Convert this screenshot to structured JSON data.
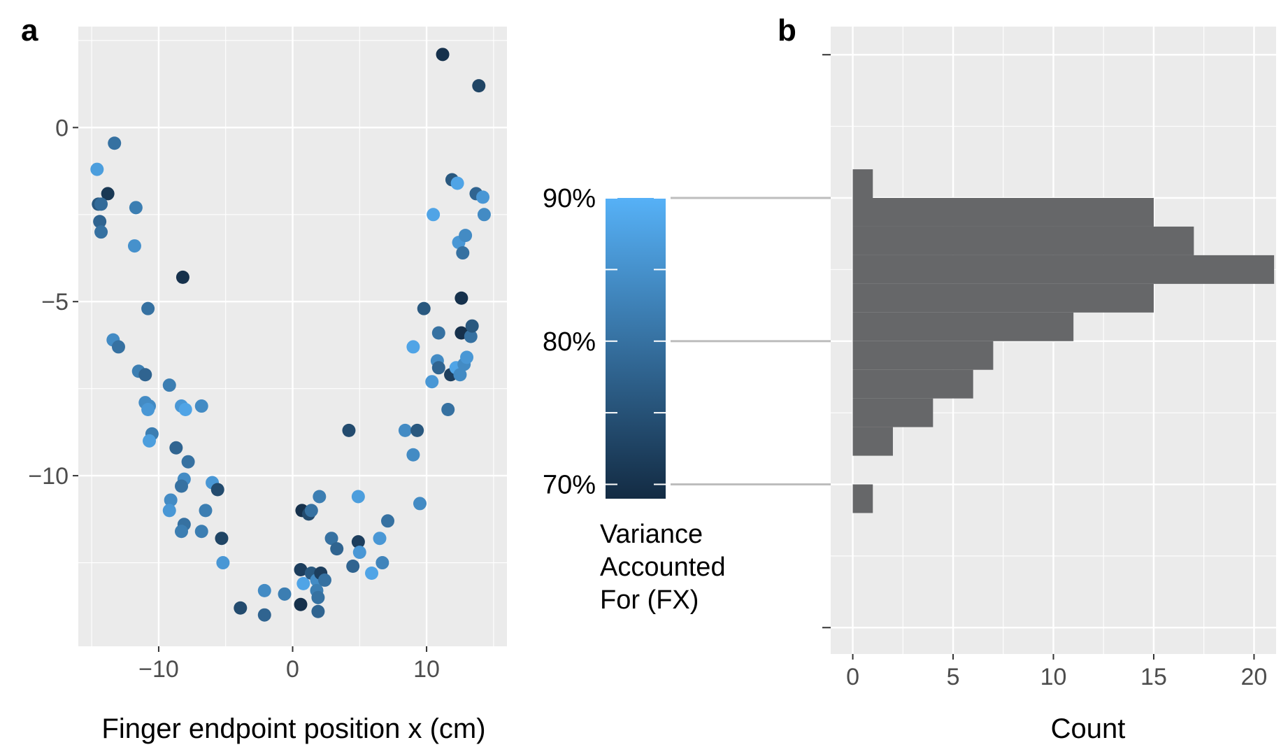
{
  "panels": {
    "a": "a",
    "b": "b"
  },
  "chart_data": [
    {
      "type": "scatter",
      "panel": "a",
      "xlabel": "Finger endpoint position x (cm)",
      "ylabel": "",
      "xlim": [
        -16,
        16
      ],
      "ylim": [
        -14.9,
        2.9
      ],
      "xticks": [
        -10,
        0,
        10
      ],
      "xtick_labels": [
        "−10",
        "0",
        "10"
      ],
      "yticks": [
        0,
        -5,
        -10
      ],
      "ytick_labels": [
        "0",
        "−5",
        "−10"
      ],
      "grid": true,
      "color_variable": "Variance Accounted For (FX)",
      "color_scale": {
        "low": "#132b43",
        "high": "#56b1f7",
        "min": 69,
        "max": 90
      },
      "points": [
        {
          "x": 11.2,
          "y": 2.1,
          "c": 70
        },
        {
          "x": 13.9,
          "y": 1.2,
          "c": 73
        },
        {
          "x": -13.3,
          "y": -0.45,
          "c": 80
        },
        {
          "x": -14.6,
          "y": -1.2,
          "c": 87
        },
        {
          "x": -13.8,
          "y": -1.9,
          "c": 71
        },
        {
          "x": -14.5,
          "y": -2.2,
          "c": 76
        },
        {
          "x": -14.3,
          "y": -2.2,
          "c": 79
        },
        {
          "x": -11.7,
          "y": -2.3,
          "c": 82
        },
        {
          "x": -14.4,
          "y": -2.7,
          "c": 78
        },
        {
          "x": -14.3,
          "y": -3.0,
          "c": 80
        },
        {
          "x": -11.8,
          "y": -3.4,
          "c": 85
        },
        {
          "x": -8.2,
          "y": -4.3,
          "c": 70
        },
        {
          "x": -10.8,
          "y": -5.2,
          "c": 80
        },
        {
          "x": -13.4,
          "y": -6.1,
          "c": 84
        },
        {
          "x": -13.0,
          "y": -6.3,
          "c": 80
        },
        {
          "x": -11.5,
          "y": -7.0,
          "c": 82
        },
        {
          "x": -11.0,
          "y": -7.1,
          "c": 78
        },
        {
          "x": -9.2,
          "y": -7.4,
          "c": 82
        },
        {
          "x": -11.0,
          "y": -7.9,
          "c": 84
        },
        {
          "x": -10.7,
          "y": -8.0,
          "c": 84
        },
        {
          "x": -10.8,
          "y": -8.1,
          "c": 86
        },
        {
          "x": -8.3,
          "y": -8.0,
          "c": 86
        },
        {
          "x": -8.0,
          "y": -8.1,
          "c": 88
        },
        {
          "x": -6.8,
          "y": -8.0,
          "c": 84
        },
        {
          "x": -10.5,
          "y": -8.8,
          "c": 82
        },
        {
          "x": -10.7,
          "y": -9.0,
          "c": 87
        },
        {
          "x": -8.7,
          "y": -9.2,
          "c": 78
        },
        {
          "x": -7.8,
          "y": -9.6,
          "c": 80
        },
        {
          "x": -8.1,
          "y": -10.1,
          "c": 84
        },
        {
          "x": -6.0,
          "y": -10.2,
          "c": 86
        },
        {
          "x": -8.3,
          "y": -10.3,
          "c": 80
        },
        {
          "x": -5.6,
          "y": -10.4,
          "c": 74
        },
        {
          "x": -9.1,
          "y": -10.7,
          "c": 84
        },
        {
          "x": -6.5,
          "y": -11.0,
          "c": 82
        },
        {
          "x": -9.2,
          "y": -11.0,
          "c": 86
        },
        {
          "x": -8.1,
          "y": -11.4,
          "c": 80
        },
        {
          "x": -8.3,
          "y": -11.6,
          "c": 82
        },
        {
          "x": -6.8,
          "y": -11.6,
          "c": 82
        },
        {
          "x": -5.3,
          "y": -11.8,
          "c": 73
        },
        {
          "x": -5.2,
          "y": -12.5,
          "c": 86
        },
        {
          "x": -3.9,
          "y": -13.8,
          "c": 74
        },
        {
          "x": -2.1,
          "y": -13.3,
          "c": 84
        },
        {
          "x": -2.1,
          "y": -14.0,
          "c": 78
        },
        {
          "x": -0.6,
          "y": -13.4,
          "c": 82
        },
        {
          "x": 0.6,
          "y": -13.7,
          "c": 70
        },
        {
          "x": 0.6,
          "y": -12.7,
          "c": 72
        },
        {
          "x": 0.8,
          "y": -13.1,
          "c": 88
        },
        {
          "x": 1.4,
          "y": -12.8,
          "c": 76
        },
        {
          "x": 1.8,
          "y": -13.0,
          "c": 84
        },
        {
          "x": 1.8,
          "y": -13.3,
          "c": 82
        },
        {
          "x": 1.9,
          "y": -13.5,
          "c": 80
        },
        {
          "x": 1.9,
          "y": -13.9,
          "c": 78
        },
        {
          "x": 2.1,
          "y": -12.8,
          "c": 72
        },
        {
          "x": 2.4,
          "y": -13.0,
          "c": 80
        },
        {
          "x": 0.7,
          "y": -11.0,
          "c": 70
        },
        {
          "x": 1.2,
          "y": -11.1,
          "c": 74
        },
        {
          "x": 1.4,
          "y": -11.0,
          "c": 80
        },
        {
          "x": 2.0,
          "y": -10.6,
          "c": 82
        },
        {
          "x": 2.9,
          "y": -11.8,
          "c": 80
        },
        {
          "x": 3.3,
          "y": -12.1,
          "c": 78
        },
        {
          "x": 4.2,
          "y": -8.7,
          "c": 74
        },
        {
          "x": 4.5,
          "y": -12.6,
          "c": 78
        },
        {
          "x": 4.9,
          "y": -11.9,
          "c": 72
        },
        {
          "x": 4.9,
          "y": -10.6,
          "c": 87
        },
        {
          "x": 5.0,
          "y": -12.2,
          "c": 86
        },
        {
          "x": 5.9,
          "y": -12.8,
          "c": 88
        },
        {
          "x": 6.5,
          "y": -11.8,
          "c": 86
        },
        {
          "x": 6.7,
          "y": -12.5,
          "c": 83
        },
        {
          "x": 7.1,
          "y": -11.3,
          "c": 80
        },
        {
          "x": 8.4,
          "y": -8.7,
          "c": 84
        },
        {
          "x": 9.0,
          "y": -6.3,
          "c": 88
        },
        {
          "x": 9.0,
          "y": -9.4,
          "c": 84
        },
        {
          "x": 9.3,
          "y": -8.7,
          "c": 76
        },
        {
          "x": 9.5,
          "y": -10.8,
          "c": 84
        },
        {
          "x": 9.8,
          "y": -5.2,
          "c": 76
        },
        {
          "x": 10.4,
          "y": -7.3,
          "c": 86
        },
        {
          "x": 10.5,
          "y": -2.5,
          "c": 88
        },
        {
          "x": 10.8,
          "y": -6.7,
          "c": 84
        },
        {
          "x": 10.9,
          "y": -6.9,
          "c": 78
        },
        {
          "x": 10.9,
          "y": -5.9,
          "c": 80
        },
        {
          "x": 11.6,
          "y": -8.1,
          "c": 80
        },
        {
          "x": 11.8,
          "y": -7.1,
          "c": 72
        },
        {
          "x": 11.9,
          "y": -1.5,
          "c": 76
        },
        {
          "x": 12.2,
          "y": -6.9,
          "c": 88
        },
        {
          "x": 12.3,
          "y": -1.6,
          "c": 88
        },
        {
          "x": 12.4,
          "y": -3.3,
          "c": 86
        },
        {
          "x": 12.5,
          "y": -7.1,
          "c": 84
        },
        {
          "x": 12.6,
          "y": -4.9,
          "c": 70
        },
        {
          "x": 12.6,
          "y": -5.9,
          "c": 70
        },
        {
          "x": 12.7,
          "y": -3.6,
          "c": 80
        },
        {
          "x": 12.8,
          "y": -6.8,
          "c": 84
        },
        {
          "x": 12.9,
          "y": -3.1,
          "c": 84
        },
        {
          "x": 13.0,
          "y": -6.6,
          "c": 86
        },
        {
          "x": 13.3,
          "y": -6.0,
          "c": 80
        },
        {
          "x": 13.4,
          "y": -5.7,
          "c": 76
        },
        {
          "x": 13.7,
          "y": -1.9,
          "c": 78
        },
        {
          "x": 14.2,
          "y": -2.0,
          "c": 86
        },
        {
          "x": 14.3,
          "y": -2.5,
          "c": 84
        }
      ]
    },
    {
      "type": "bar",
      "panel": "b",
      "orientation": "horizontal",
      "xlabel": "Count",
      "ylabel": "",
      "xlim": [
        -1.1,
        21.1
      ],
      "xticks": [
        0,
        5,
        10,
        15,
        20
      ],
      "xtick_labels": [
        "0",
        "5",
        "10",
        "15",
        "20"
      ],
      "grid": true,
      "bar_color": "#666769",
      "bins": [
        {
          "from": 90,
          "to": 92,
          "count": 1
        },
        {
          "from": 88,
          "to": 90,
          "count": 15
        },
        {
          "from": 86,
          "to": 88,
          "count": 17
        },
        {
          "from": 84,
          "to": 86,
          "count": 21
        },
        {
          "from": 82,
          "to": 84,
          "count": 15
        },
        {
          "from": 80,
          "to": 82,
          "count": 11
        },
        {
          "from": 78,
          "to": 80,
          "count": 7
        },
        {
          "from": 76,
          "to": 78,
          "count": 6
        },
        {
          "from": 74,
          "to": 76,
          "count": 4
        },
        {
          "from": 72,
          "to": 74,
          "count": 2
        },
        {
          "from": 70,
          "to": 72,
          "count": 0
        },
        {
          "from": 68,
          "to": 70,
          "count": 1
        }
      ]
    }
  ],
  "legend": {
    "title_lines": [
      "Variance",
      "Accounted",
      "For (FX)"
    ],
    "labels": [
      {
        "value": 90,
        "text": "90%"
      },
      {
        "value": 80,
        "text": "80%"
      },
      {
        "value": 70,
        "text": "70%"
      }
    ],
    "min": 69,
    "max": 90,
    "gradient": [
      "#132b43",
      "#56b1f7"
    ]
  },
  "colors": {
    "panel_bg": "#ebebeb",
    "grid": "#ffffff",
    "tick_mark": "#333333",
    "connector": "#bdbdbd"
  }
}
